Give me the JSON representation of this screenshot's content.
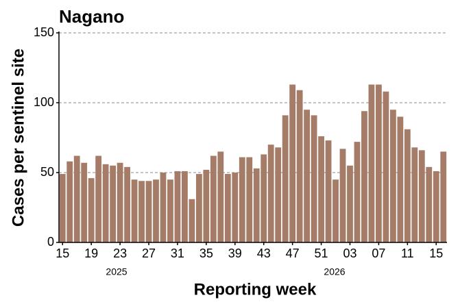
{
  "chart_data": {
    "type": "bar",
    "title": "Nagano",
    "y_label": "Cases per sentinel site",
    "x_label": "Reporting week",
    "years": [
      "2025",
      "2026"
    ],
    "categories": [
      "15",
      null,
      null,
      null,
      "19",
      null,
      null,
      null,
      "23",
      null,
      null,
      null,
      "27",
      null,
      null,
      null,
      "31",
      null,
      null,
      null,
      "35",
      null,
      null,
      null,
      "39",
      null,
      null,
      null,
      "43",
      null,
      null,
      null,
      "47",
      null,
      null,
      null,
      "51",
      null,
      null,
      null,
      "03",
      null,
      null,
      null,
      "07",
      null,
      null,
      null,
      "11",
      null,
      null,
      null,
      "15",
      null
    ],
    "values": [
      49,
      58,
      62,
      57,
      46,
      62,
      56,
      55,
      57,
      54,
      45,
      44,
      44,
      45,
      50,
      45,
      51,
      51,
      31,
      49,
      52,
      62,
      65,
      49,
      50,
      61,
      61,
      53,
      63,
      70,
      68,
      91,
      113,
      109,
      95,
      91,
      76,
      73,
      45,
      67,
      55,
      72,
      94,
      113,
      113,
      108,
      95,
      90,
      81,
      68,
      66,
      54,
      51,
      65
    ],
    "color": "#a57c68",
    "ylim": [
      0,
      150
    ],
    "yticks": [
      0,
      50,
      100,
      150
    ],
    "grid": true
  }
}
